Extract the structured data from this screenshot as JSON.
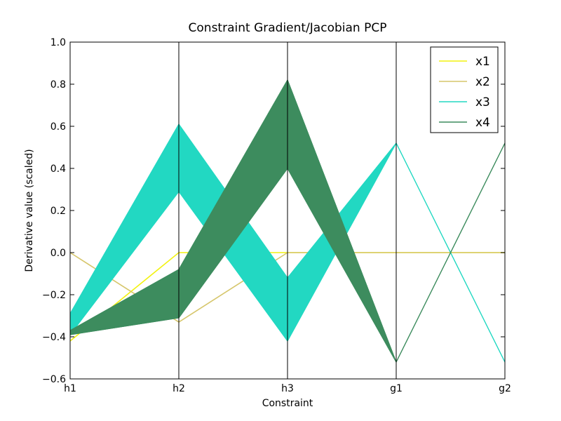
{
  "chart_data": {
    "type": "parallel_coordinates",
    "title": "Constraint Gradient/Jacobian PCP",
    "xlabel": "Constraint",
    "ylabel": "Derivative value (scaled)",
    "categories": [
      "h1",
      "h2",
      "h3",
      "g1",
      "g2"
    ],
    "ylim": [
      -0.6,
      1.0
    ],
    "yticks": [
      -0.6,
      -0.4,
      -0.2,
      0.0,
      0.2,
      0.4,
      0.6,
      0.8,
      1.0
    ],
    "ytick_labels": [
      "−0.6",
      "−0.4",
      "−0.2",
      "0.0",
      "0.2",
      "0.4",
      "0.6",
      "0.8",
      "1.0"
    ],
    "grid": false,
    "legend_position": "top-right",
    "series": [
      {
        "name": "x1",
        "color": "#f2f20f",
        "values": [
          -0.42,
          0.0,
          0.0,
          0.0,
          0.0
        ]
      },
      {
        "name": "x2",
        "color": "#d6c66b",
        "values": [
          0.0,
          -0.33,
          0.0,
          0.0,
          0.0
        ]
      },
      {
        "name": "x3",
        "color": "#22d8c2",
        "range_min": [
          -0.39,
          0.29,
          -0.42,
          0.52,
          -0.52
        ],
        "range_max": [
          -0.29,
          0.61,
          -0.12,
          0.52,
          -0.52
        ]
      },
      {
        "name": "x4",
        "color": "#3d8c5e",
        "range_min": [
          -0.39,
          -0.31,
          0.4,
          -0.52,
          0.52
        ],
        "range_max": [
          -0.37,
          -0.08,
          0.82,
          -0.52,
          0.52
        ]
      }
    ]
  }
}
